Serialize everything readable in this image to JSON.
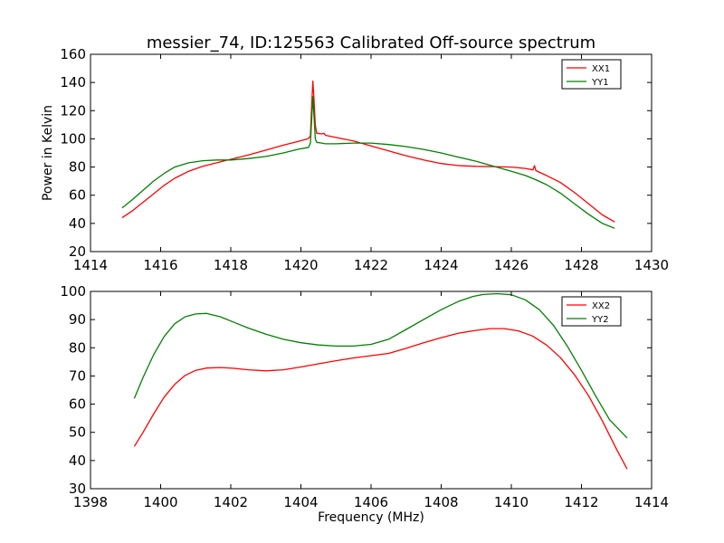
{
  "figure": {
    "title": "messier_74, ID:125563 Calibrated Off-source spectrum"
  },
  "chart_data": [
    {
      "type": "line",
      "title": "messier_74, ID:125563 Calibrated Off-source spectrum",
      "xlabel": "",
      "ylabel": "Power in Kelvin",
      "xlim": [
        1414,
        1430
      ],
      "ylim": [
        20,
        160
      ],
      "xticks": [
        1414,
        1416,
        1418,
        1420,
        1422,
        1424,
        1426,
        1428,
        1430
      ],
      "yticks": [
        20,
        40,
        60,
        80,
        100,
        120,
        140,
        160
      ],
      "grid": false,
      "legend": "top-right",
      "series": [
        {
          "name": "XX1",
          "color": "#ff0000",
          "points": [
            [
              1414.9,
              44
            ],
            [
              1415.2,
              49
            ],
            [
              1415.5,
              55
            ],
            [
              1415.8,
              61
            ],
            [
              1416.1,
              67
            ],
            [
              1416.4,
              72
            ],
            [
              1416.8,
              77
            ],
            [
              1417.2,
              80.5
            ],
            [
              1417.6,
              83
            ],
            [
              1418.0,
              85.5
            ],
            [
              1418.5,
              88.5
            ],
            [
              1419.0,
              92
            ],
            [
              1419.5,
              95.5
            ],
            [
              1419.9,
              98
            ],
            [
              1420.2,
              100
            ],
            [
              1420.27,
              102
            ],
            [
              1420.31,
              125
            ],
            [
              1420.34,
              141
            ],
            [
              1420.37,
              130
            ],
            [
              1420.41,
              110
            ],
            [
              1420.45,
              104
            ],
            [
              1420.6,
              103.5
            ],
            [
              1420.66,
              104
            ],
            [
              1420.7,
              102.5
            ],
            [
              1421.0,
              101
            ],
            [
              1421.5,
              98.5
            ],
            [
              1422.0,
              95
            ],
            [
              1422.5,
              91.5
            ],
            [
              1423.0,
              88
            ],
            [
              1423.5,
              85
            ],
            [
              1424.0,
              82.5
            ],
            [
              1424.5,
              81
            ],
            [
              1425.0,
              80.5
            ],
            [
              1425.5,
              80.3
            ],
            [
              1426.0,
              80
            ],
            [
              1426.4,
              79
            ],
            [
              1426.62,
              78
            ],
            [
              1426.66,
              81
            ],
            [
              1426.7,
              77.5
            ],
            [
              1427.0,
              74
            ],
            [
              1427.4,
              69
            ],
            [
              1427.8,
              62
            ],
            [
              1428.2,
              54
            ],
            [
              1428.6,
              46
            ],
            [
              1428.95,
              41
            ]
          ]
        },
        {
          "name": "YY1",
          "color": "#008000",
          "points": [
            [
              1414.9,
              51
            ],
            [
              1415.2,
              57
            ],
            [
              1415.5,
              63.5
            ],
            [
              1415.8,
              70
            ],
            [
              1416.1,
              75.5
            ],
            [
              1416.4,
              80
            ],
            [
              1416.8,
              83
            ],
            [
              1417.2,
              84.5
            ],
            [
              1417.6,
              85
            ],
            [
              1418.0,
              85
            ],
            [
              1418.5,
              86
            ],
            [
              1419.0,
              87.5
            ],
            [
              1419.5,
              90
            ],
            [
              1419.9,
              92.5
            ],
            [
              1420.22,
              94
            ],
            [
              1420.27,
              97
            ],
            [
              1420.31,
              115
            ],
            [
              1420.34,
              130
            ],
            [
              1420.37,
              118
            ],
            [
              1420.41,
              100
            ],
            [
              1420.45,
              97.5
            ],
            [
              1420.6,
              97
            ],
            [
              1420.7,
              96.5
            ],
            [
              1421.0,
              96.5
            ],
            [
              1421.5,
              97
            ],
            [
              1422.0,
              97
            ],
            [
              1422.5,
              96
            ],
            [
              1423.0,
              94.5
            ],
            [
              1423.5,
              92.5
            ],
            [
              1424.0,
              90
            ],
            [
              1424.5,
              87
            ],
            [
              1425.0,
              84
            ],
            [
              1425.5,
              80.5
            ],
            [
              1426.0,
              77
            ],
            [
              1426.4,
              74
            ],
            [
              1426.7,
              71
            ],
            [
              1427.0,
              67.5
            ],
            [
              1427.4,
              61.5
            ],
            [
              1427.8,
              54
            ],
            [
              1428.2,
              46.5
            ],
            [
              1428.6,
              40
            ],
            [
              1428.95,
              36.5
            ]
          ]
        }
      ]
    },
    {
      "type": "line",
      "title": "",
      "xlabel": "Frequency (MHz)",
      "ylabel": "",
      "xlim": [
        1398,
        1414
      ],
      "ylim": [
        30,
        100
      ],
      "xticks": [
        1398,
        1400,
        1402,
        1404,
        1406,
        1408,
        1410,
        1412,
        1414
      ],
      "yticks": [
        30,
        40,
        50,
        60,
        70,
        80,
        90,
        100
      ],
      "grid": false,
      "legend": "top-right",
      "series": [
        {
          "name": "XX2",
          "color": "#ff0000",
          "points": [
            [
              1399.25,
              45
            ],
            [
              1399.5,
              50
            ],
            [
              1399.8,
              56.5
            ],
            [
              1400.1,
              62.5
            ],
            [
              1400.4,
              67
            ],
            [
              1400.7,
              70.2
            ],
            [
              1401.0,
              72
            ],
            [
              1401.3,
              72.8
            ],
            [
              1401.7,
              73
            ],
            [
              1402.1,
              72.7
            ],
            [
              1402.5,
              72.2
            ],
            [
              1403.0,
              71.8
            ],
            [
              1403.5,
              72.2
            ],
            [
              1404.0,
              73.2
            ],
            [
              1404.5,
              74.3
            ],
            [
              1405.0,
              75.4
            ],
            [
              1405.5,
              76.4
            ],
            [
              1406.0,
              77.2
            ],
            [
              1406.5,
              78
            ],
            [
              1407.0,
              79.8
            ],
            [
              1407.5,
              81.8
            ],
            [
              1408.0,
              83.6
            ],
            [
              1408.5,
              85.2
            ],
            [
              1409.0,
              86.2
            ],
            [
              1409.4,
              86.8
            ],
            [
              1409.8,
              86.8
            ],
            [
              1410.2,
              86
            ],
            [
              1410.6,
              84.2
            ],
            [
              1411.0,
              81
            ],
            [
              1411.4,
              76.5
            ],
            [
              1411.8,
              70.5
            ],
            [
              1412.2,
              63
            ],
            [
              1412.6,
              54
            ],
            [
              1413.0,
              44
            ],
            [
              1413.3,
              37
            ]
          ]
        },
        {
          "name": "YY2",
          "color": "#008000",
          "points": [
            [
              1399.25,
              62
            ],
            [
              1399.5,
              69.5
            ],
            [
              1399.8,
              77.5
            ],
            [
              1400.1,
              84
            ],
            [
              1400.4,
              88.5
            ],
            [
              1400.7,
              91
            ],
            [
              1401.0,
              92
            ],
            [
              1401.3,
              92.2
            ],
            [
              1401.7,
              91
            ],
            [
              1402.1,
              89
            ],
            [
              1402.5,
              87
            ],
            [
              1403.0,
              84.8
            ],
            [
              1403.5,
              83
            ],
            [
              1404.0,
              81.8
            ],
            [
              1404.5,
              81
            ],
            [
              1405.0,
              80.6
            ],
            [
              1405.5,
              80.6
            ],
            [
              1406.0,
              81.2
            ],
            [
              1406.5,
              83
            ],
            [
              1407.0,
              86.5
            ],
            [
              1407.5,
              90
            ],
            [
              1408.0,
              93.5
            ],
            [
              1408.5,
              96.5
            ],
            [
              1408.9,
              98.2
            ],
            [
              1409.2,
              98.9
            ],
            [
              1409.6,
              99.2
            ],
            [
              1410.0,
              98.8
            ],
            [
              1410.4,
              97
            ],
            [
              1410.8,
              93.5
            ],
            [
              1411.2,
              88
            ],
            [
              1411.6,
              80.5
            ],
            [
              1412.0,
              72
            ],
            [
              1412.4,
              63
            ],
            [
              1412.8,
              54.5
            ],
            [
              1413.3,
              48
            ]
          ]
        }
      ]
    }
  ]
}
